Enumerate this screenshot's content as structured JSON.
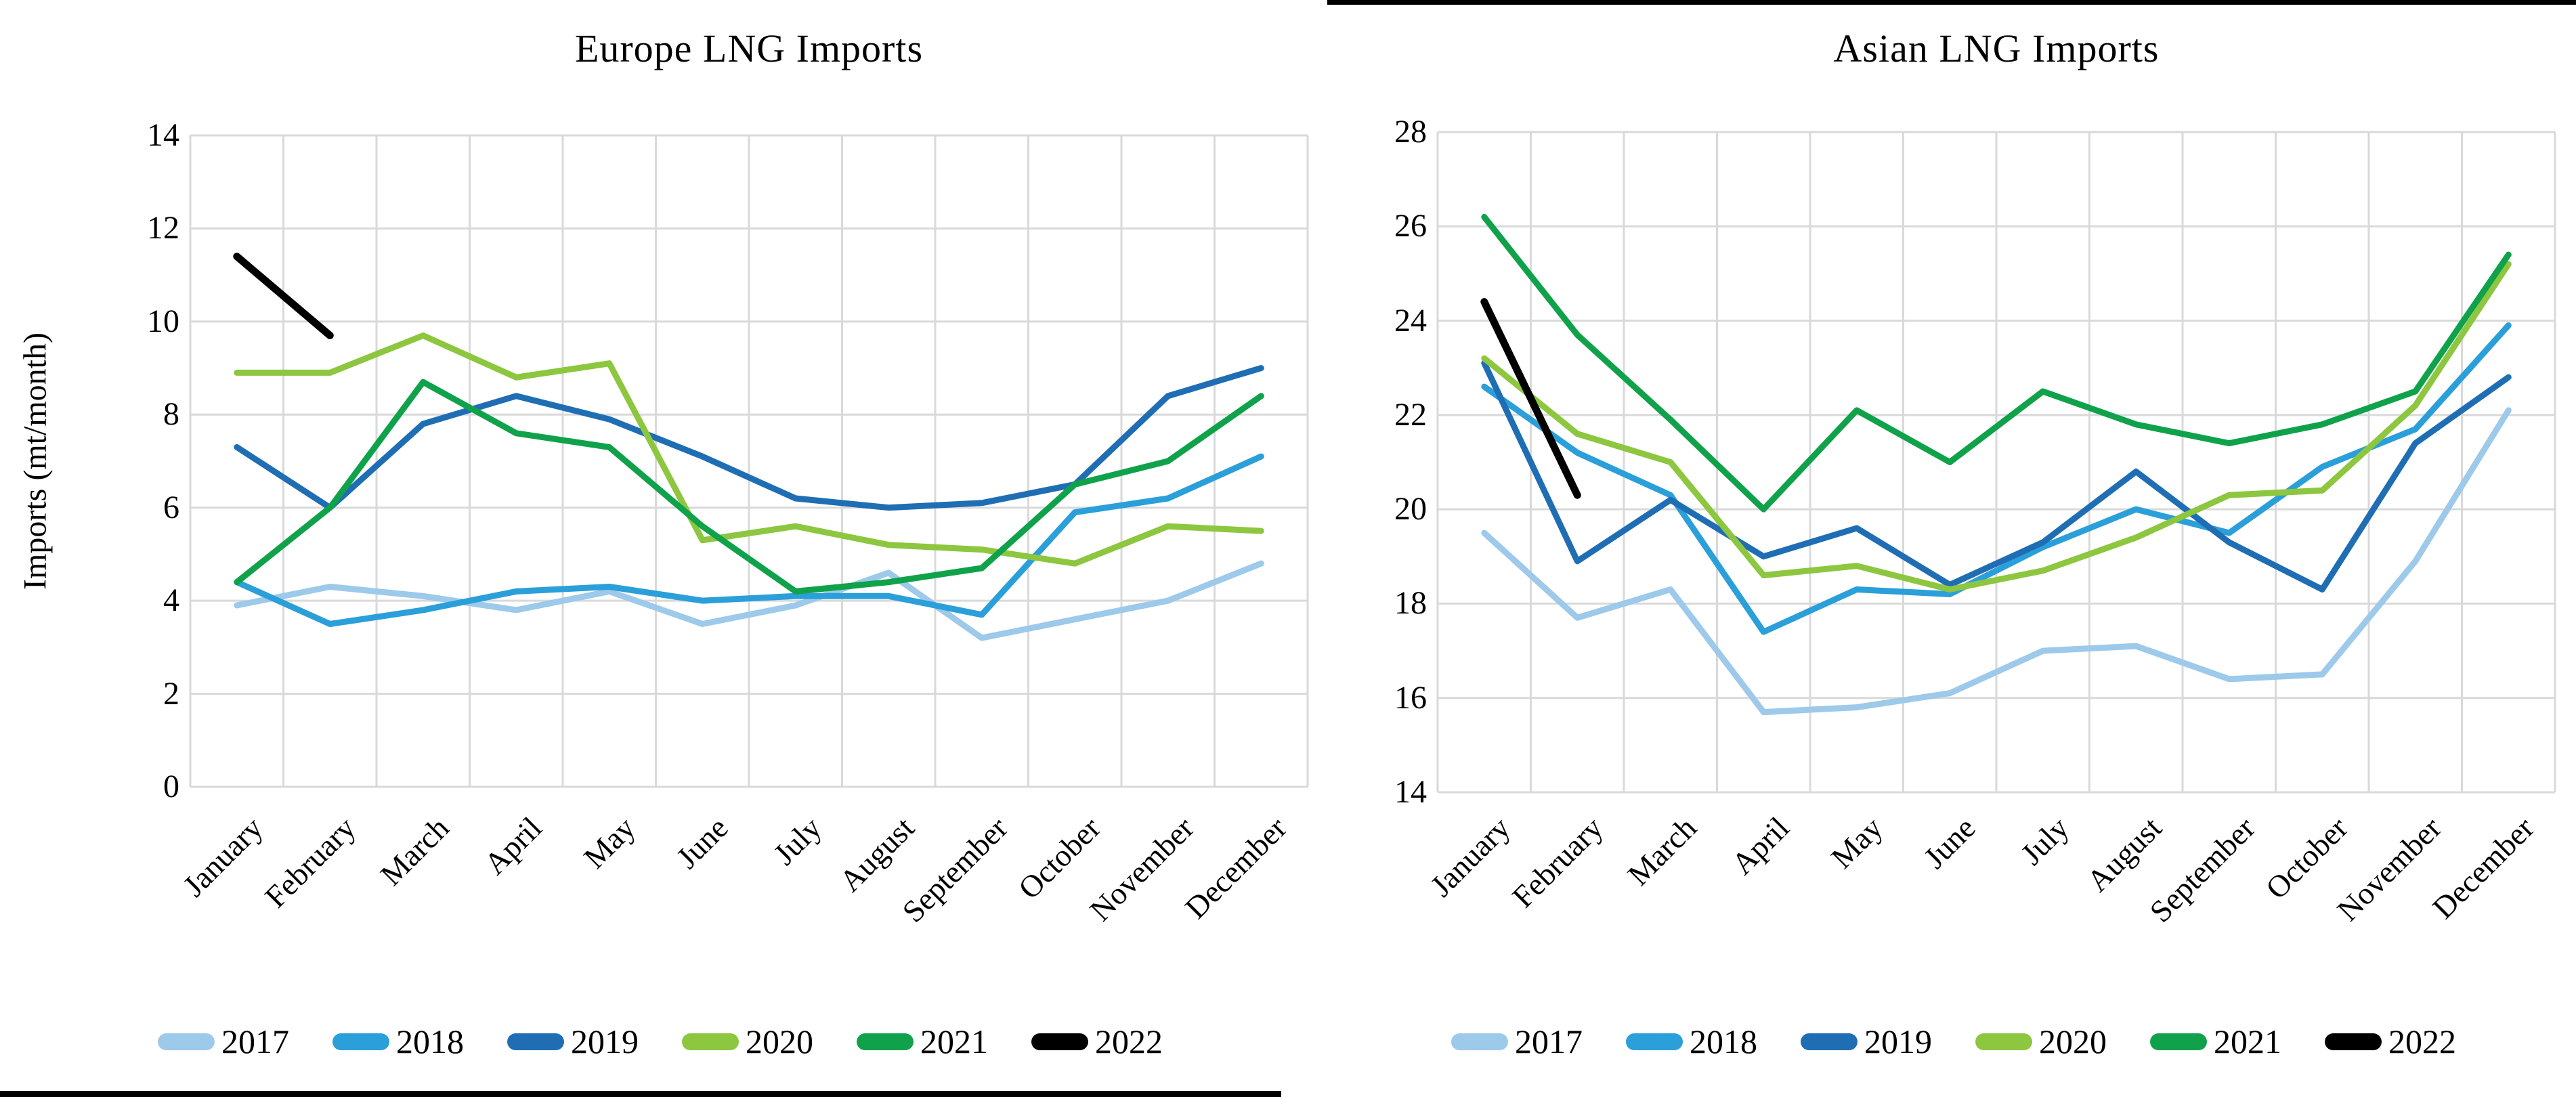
{
  "page": {
    "background": "#ffffff",
    "top_border_color": "#000000",
    "bottom_border_color": "#000000",
    "gridline_color": "#d9d9d9",
    "text_color": "#000000"
  },
  "months": [
    "January",
    "February",
    "March",
    "April",
    "May",
    "June",
    "July",
    "August",
    "September",
    "October",
    "November",
    "December"
  ],
  "series_colors": {
    "2017": "#9dc9ea",
    "2018": "#2b9fd9",
    "2019": "#1f6eb4",
    "2020": "#8dc63f",
    "2021": "#10a24b",
    "2022": "#000000"
  },
  "chart_data": [
    {
      "type": "line",
      "title": "Europe LNG Imports",
      "xlabel": "",
      "ylabel": "Imports (mt/month)",
      "ylim": [
        0,
        14
      ],
      "yticks": [
        0,
        2,
        4,
        6,
        8,
        10,
        12,
        14
      ],
      "grid": true,
      "legend_position": "bottom",
      "categories": [
        "January",
        "February",
        "March",
        "April",
        "May",
        "June",
        "July",
        "August",
        "September",
        "October",
        "November",
        "December"
      ],
      "series": [
        {
          "name": "2017",
          "color": "#9dc9ea",
          "values": [
            3.9,
            4.3,
            4.1,
            3.8,
            4.2,
            3.5,
            3.9,
            4.6,
            3.2,
            3.6,
            4.0,
            4.8
          ]
        },
        {
          "name": "2018",
          "color": "#2b9fd9",
          "values": [
            4.4,
            3.5,
            3.8,
            4.2,
            4.3,
            4.0,
            4.1,
            4.1,
            3.7,
            5.9,
            6.2,
            7.1
          ]
        },
        {
          "name": "2019",
          "color": "#1f6eb4",
          "values": [
            7.3,
            6.0,
            7.8,
            8.4,
            7.9,
            7.1,
            6.2,
            6.0,
            6.1,
            6.5,
            8.4,
            9.0
          ]
        },
        {
          "name": "2020",
          "color": "#8dc63f",
          "values": [
            8.9,
            8.9,
            9.7,
            8.8,
            9.1,
            5.3,
            5.6,
            5.2,
            5.1,
            4.8,
            5.6,
            5.5
          ]
        },
        {
          "name": "2021",
          "color": "#10a24b",
          "values": [
            4.4,
            6.0,
            8.7,
            7.6,
            7.3,
            5.6,
            4.2,
            4.4,
            4.7,
            6.5,
            7.0,
            8.4
          ]
        },
        {
          "name": "2022",
          "color": "#000000",
          "values": [
            11.4,
            9.7,
            null,
            null,
            null,
            null,
            null,
            null,
            null,
            null,
            null,
            null
          ]
        }
      ]
    },
    {
      "type": "line",
      "title": "Asian LNG Imports",
      "xlabel": "",
      "ylabel": "",
      "ylim": [
        14,
        28
      ],
      "yticks": [
        14,
        16,
        18,
        20,
        22,
        24,
        26,
        28
      ],
      "grid": true,
      "legend_position": "bottom",
      "categories": [
        "January",
        "February",
        "March",
        "April",
        "May",
        "June",
        "July",
        "August",
        "September",
        "October",
        "November",
        "December"
      ],
      "series": [
        {
          "name": "2017",
          "color": "#9dc9ea",
          "values": [
            19.5,
            17.7,
            18.3,
            15.7,
            15.8,
            16.1,
            17.0,
            17.1,
            16.4,
            16.5,
            18.9,
            22.1
          ]
        },
        {
          "name": "2018",
          "color": "#2b9fd9",
          "values": [
            22.6,
            21.2,
            20.3,
            17.4,
            18.3,
            18.2,
            19.2,
            20.0,
            19.5,
            20.9,
            21.7,
            23.9
          ]
        },
        {
          "name": "2019",
          "color": "#1f6eb4",
          "values": [
            23.1,
            18.9,
            20.2,
            19.0,
            19.6,
            18.4,
            19.3,
            20.8,
            19.3,
            18.3,
            21.4,
            22.8
          ]
        },
        {
          "name": "2020",
          "color": "#8dc63f",
          "values": [
            23.2,
            21.6,
            21.0,
            18.6,
            18.8,
            18.3,
            18.7,
            19.4,
            20.3,
            20.4,
            22.2,
            25.2
          ]
        },
        {
          "name": "2021",
          "color": "#10a24b",
          "values": [
            26.2,
            23.7,
            21.9,
            20.0,
            22.1,
            21.0,
            22.5,
            21.8,
            21.4,
            21.8,
            22.5,
            25.4
          ]
        },
        {
          "name": "2022",
          "color": "#000000",
          "values": [
            24.4,
            20.3,
            null,
            null,
            null,
            null,
            null,
            null,
            null,
            null,
            null,
            null
          ]
        }
      ]
    }
  ]
}
